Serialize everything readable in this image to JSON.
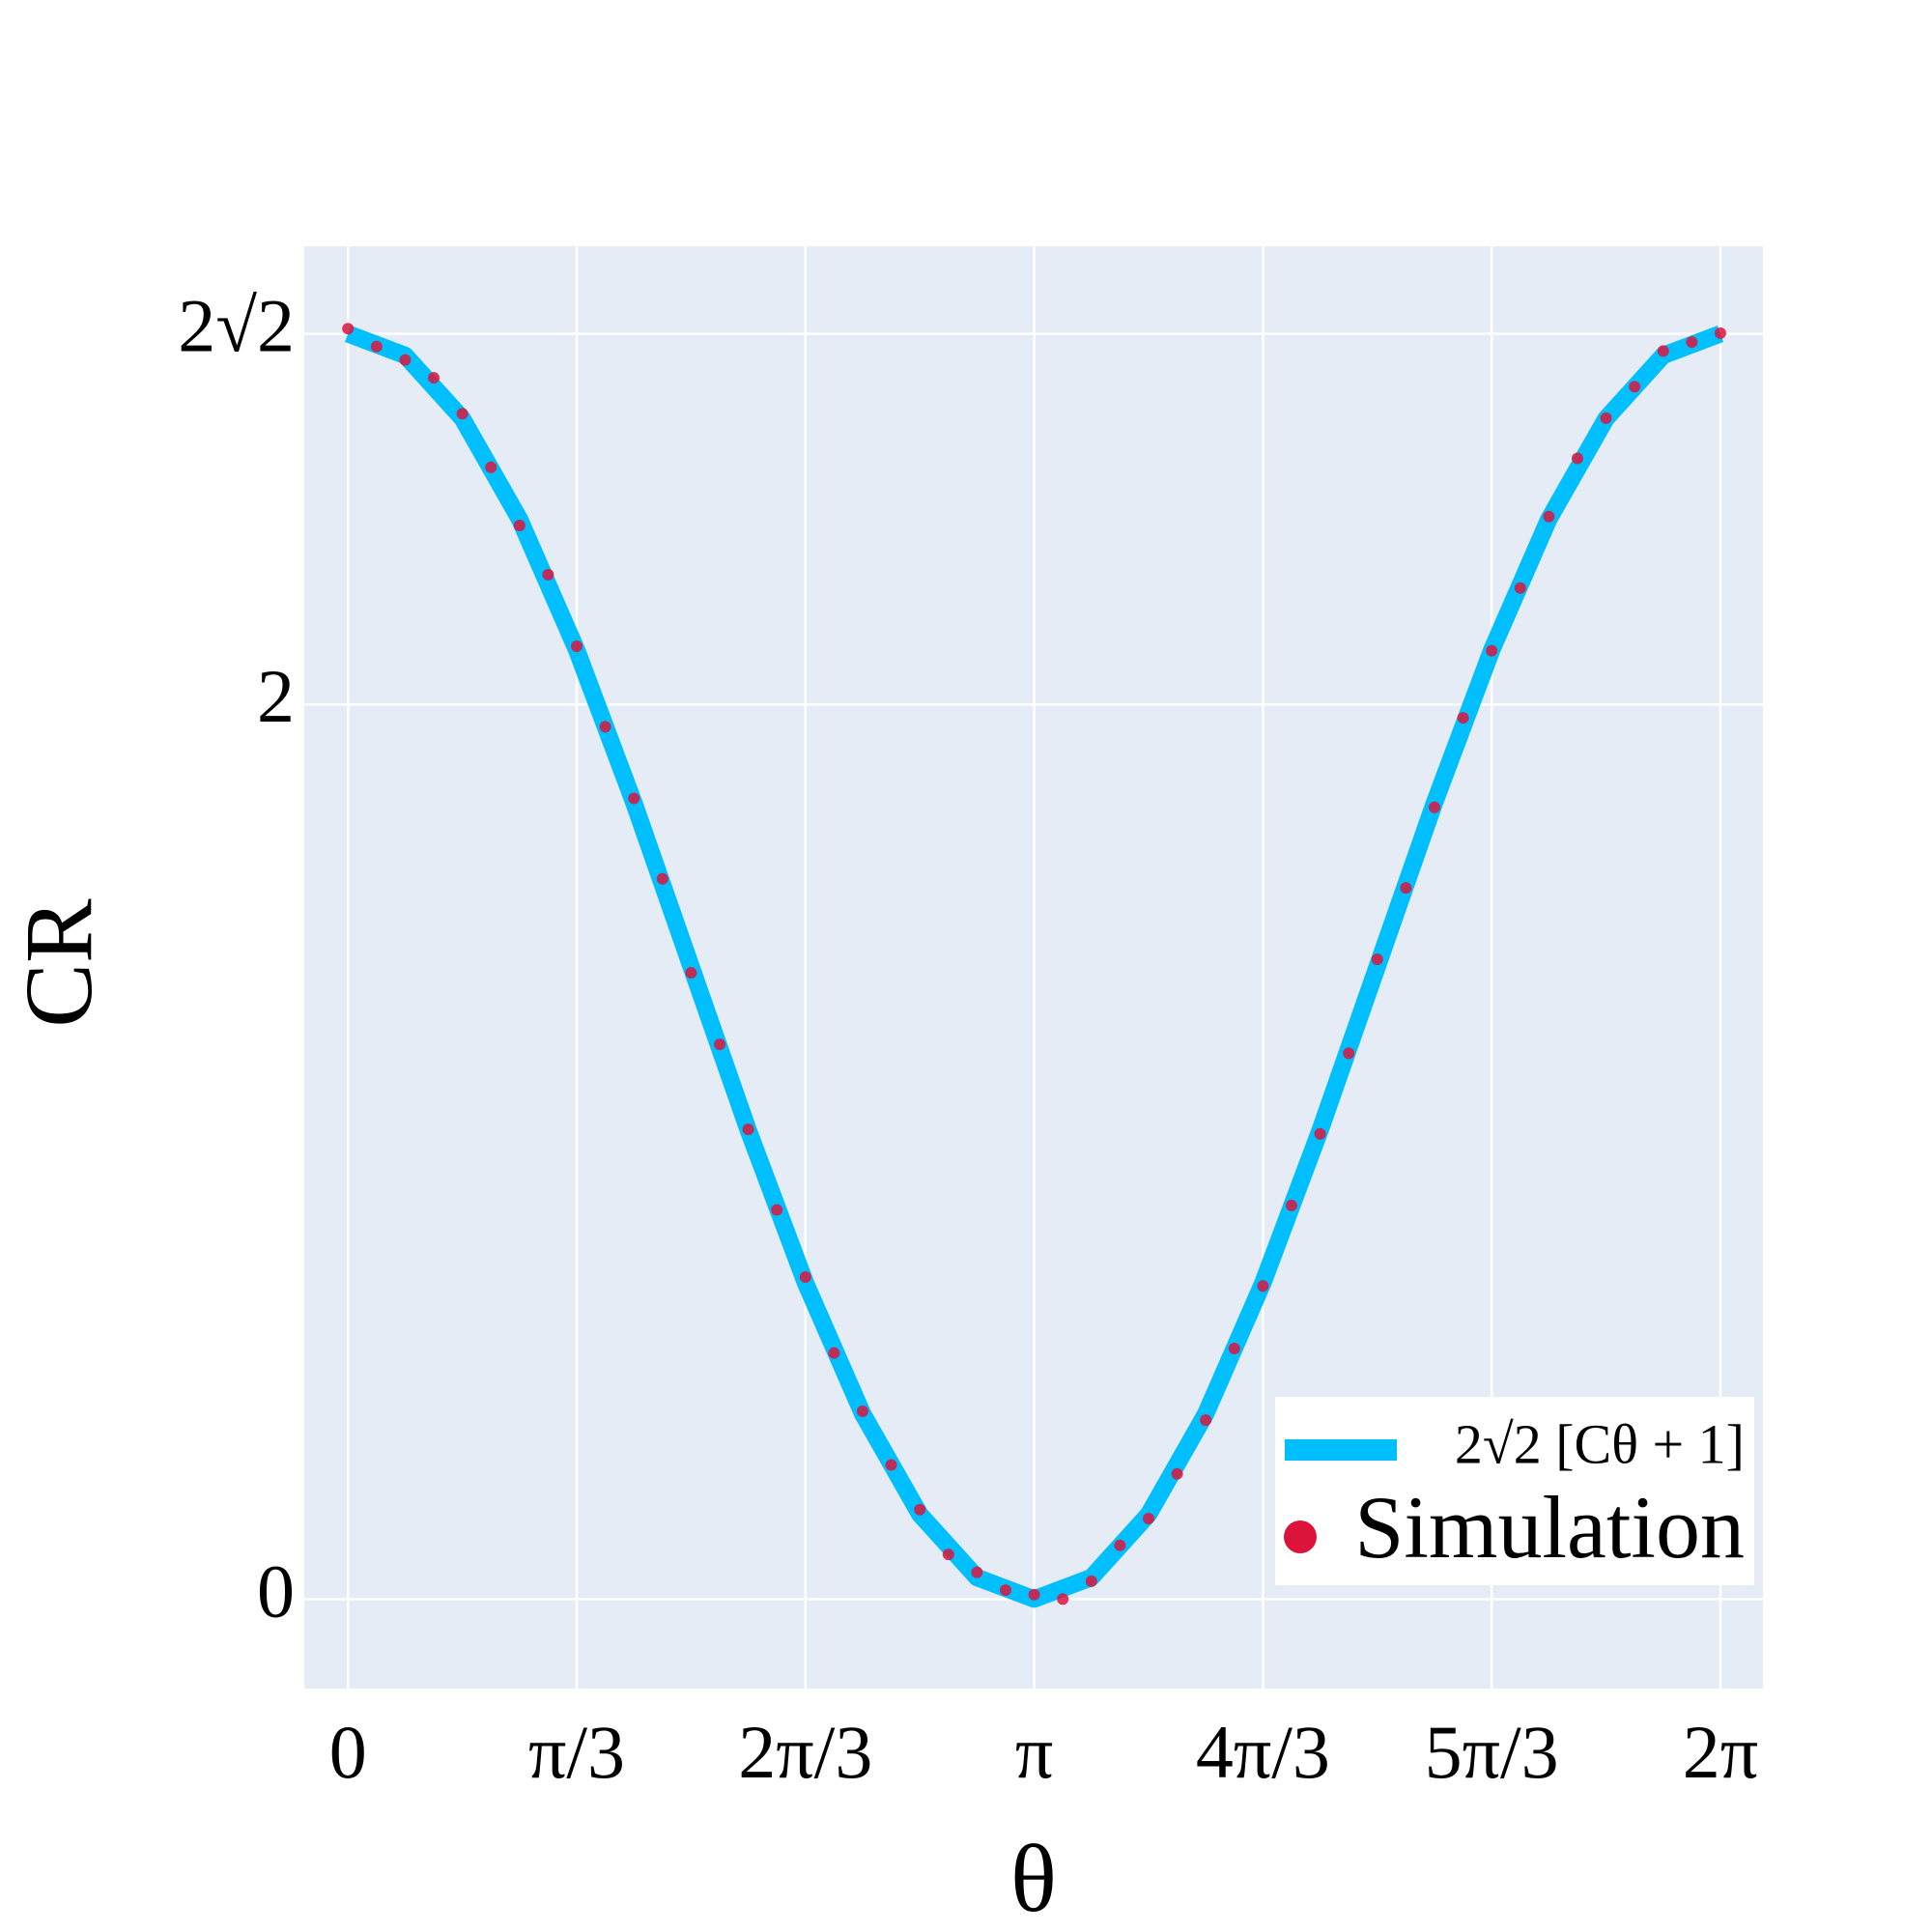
{
  "chart_data": {
    "type": "line",
    "xlabel": "θ",
    "ylabel": "CR",
    "xlim": [
      -0.2,
      6.478
    ],
    "ylim": [
      -0.2,
      3.024
    ],
    "xticks": [
      0,
      {
        "value": 1.0472,
        "label": "π/3"
      },
      {
        "value": 2.0944,
        "label": "2π/3"
      },
      {
        "value": 3.1416,
        "label": "π"
      },
      {
        "value": 4.1888,
        "label": "4π/3"
      },
      {
        "value": 5.236,
        "label": "5π/3"
      },
      {
        "value": 6.2832,
        "label": "2π"
      }
    ],
    "yticks": [
      0,
      2,
      {
        "value": 2.8284,
        "label": "2√2"
      }
    ],
    "grid": true,
    "legend": "lower right",
    "series": [
      {
        "name": "2√2 [Cθ + 1]",
        "type": "line",
        "color": "#00bfff",
        "x": [
          0,
          0.2618,
          0.5236,
          0.7854,
          1.0472,
          1.309,
          1.5708,
          1.8326,
          2.0944,
          2.3562,
          2.618,
          2.8798,
          3.1416,
          3.4034,
          3.6652,
          3.927,
          4.1888,
          4.4506,
          4.7124,
          4.9742,
          5.236,
          5.4978,
          5.7596,
          6.0214,
          6.2832
        ],
        "values": [
          2.8284,
          2.7802,
          2.639,
          2.4142,
          2.1213,
          1.7802,
          1.4142,
          1.0482,
          0.7071,
          0.4142,
          0.1895,
          0.0482,
          0,
          0.0482,
          0.1895,
          0.4142,
          0.7071,
          1.0482,
          1.4142,
          1.7802,
          2.1213,
          2.4142,
          2.639,
          2.7802,
          2.8284
        ]
      },
      {
        "name": "Simulation",
        "type": "scatter",
        "color": "#dc143c",
        "x": [
          0,
          0.1309,
          0.2618,
          0.3927,
          0.5236,
          0.6545,
          0.7854,
          0.9163,
          1.0472,
          1.1781,
          1.309,
          1.4399,
          1.5708,
          1.7017,
          1.8326,
          1.9635,
          2.0944,
          2.2253,
          2.3562,
          2.4871,
          2.618,
          2.7489,
          2.8798,
          3.0107,
          3.1416,
          3.2725,
          3.4034,
          3.5343,
          3.6652,
          3.7961,
          3.927,
          4.0579,
          4.1888,
          4.3197,
          4.4506,
          4.5815,
          4.7124,
          4.8433,
          4.9742,
          5.1051,
          5.236,
          5.3669,
          5.4978,
          5.6287,
          5.7596,
          5.8905,
          6.0214,
          6.1523,
          6.2832
        ],
        "values": [
          2.84,
          2.8,
          2.77,
          2.73,
          2.65,
          2.53,
          2.4,
          2.29,
          2.13,
          1.95,
          1.79,
          1.61,
          1.4,
          1.24,
          1.05,
          0.87,
          0.72,
          0.55,
          0.42,
          0.3,
          0.2,
          0.1,
          0.06,
          0.02,
          0.01,
          0,
          0.04,
          0.12,
          0.18,
          0.28,
          0.4,
          0.56,
          0.7,
          0.88,
          1.04,
          1.22,
          1.43,
          1.59,
          1.77,
          1.97,
          2.12,
          2.26,
          2.42,
          2.55,
          2.64,
          2.71,
          2.79,
          2.81,
          2.83
        ]
      }
    ]
  }
}
